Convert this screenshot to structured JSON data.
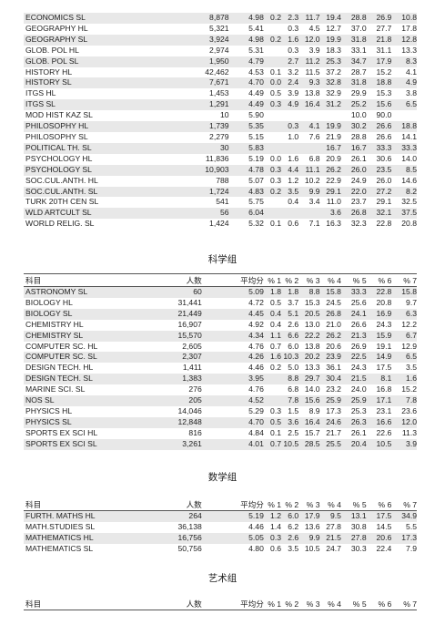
{
  "top_table": {
    "rows": [
      {
        "name": "ECONOMICS SL",
        "count": "8,878",
        "avg": "4.98",
        "p1": "0.2",
        "p2": "2.3",
        "p3": "11.7",
        "p4": "19.4",
        "p5": "28.8",
        "p6": "26.9",
        "p7": "10.8"
      },
      {
        "name": "GEOGRAPHY HL",
        "count": "5,321",
        "avg": "5.41",
        "p1": "",
        "p2": "0.3",
        "p3": "4.5",
        "p4": "12.7",
        "p5": "37.0",
        "p6": "27.7",
        "p7": "17.8"
      },
      {
        "name": "GEOGRAPHY SL",
        "count": "3,924",
        "avg": "4.98",
        "p1": "0.2",
        "p2": "1.6",
        "p3": "12.0",
        "p4": "19.9",
        "p5": "31.8",
        "p6": "21.8",
        "p7": "12.8"
      },
      {
        "name": "GLOB. POL HL",
        "count": "2,974",
        "avg": "5.31",
        "p1": "",
        "p2": "0.3",
        "p3": "3.9",
        "p4": "18.3",
        "p5": "33.1",
        "p6": "31.1",
        "p7": "13.3"
      },
      {
        "name": "GLOB. POL SL",
        "count": "1,950",
        "avg": "4.79",
        "p1": "",
        "p2": "2.7",
        "p3": "11.2",
        "p4": "25.3",
        "p5": "34.7",
        "p6": "17.9",
        "p7": "8.3"
      },
      {
        "name": "HISTORY HL",
        "count": "42,462",
        "avg": "4.53",
        "p1": "0.1",
        "p2": "3.2",
        "p3": "11.5",
        "p4": "37.2",
        "p5": "28.7",
        "p6": "15.2",
        "p7": "4.1"
      },
      {
        "name": "HISTORY SL",
        "count": "7,671",
        "avg": "4.70",
        "p1": "0.0",
        "p2": "2.4",
        "p3": "9.3",
        "p4": "32.8",
        "p5": "31.8",
        "p6": "18.8",
        "p7": "4.9"
      },
      {
        "name": "ITGS HL",
        "count": "1,453",
        "avg": "4.49",
        "p1": "0.5",
        "p2": "3.9",
        "p3": "13.8",
        "p4": "32.9",
        "p5": "29.9",
        "p6": "15.3",
        "p7": "3.8"
      },
      {
        "name": "ITGS SL",
        "count": "1,291",
        "avg": "4.49",
        "p1": "0.3",
        "p2": "4.9",
        "p3": "16.4",
        "p4": "31.2",
        "p5": "25.2",
        "p6": "15.6",
        "p7": "6.5"
      },
      {
        "name": "MOD HIST KAZ SL",
        "count": "10",
        "avg": "5.90",
        "p1": "",
        "p2": "",
        "p3": "",
        "p4": "",
        "p5": "10.0",
        "p6": "90.0",
        "p7": ""
      },
      {
        "name": "PHILOSOPHY HL",
        "count": "1,739",
        "avg": "5.35",
        "p1": "",
        "p2": "0.3",
        "p3": "4.1",
        "p4": "19.9",
        "p5": "30.2",
        "p6": "26.6",
        "p7": "18.8"
      },
      {
        "name": "PHILOSOPHY SL",
        "count": "2,279",
        "avg": "5.15",
        "p1": "",
        "p2": "1.0",
        "p3": "7.6",
        "p4": "21.9",
        "p5": "28.8",
        "p6": "26.6",
        "p7": "14.1"
      },
      {
        "name": "POLITICAL TH. SL",
        "count": "30",
        "avg": "5.83",
        "p1": "",
        "p2": "",
        "p3": "",
        "p4": "16.7",
        "p5": "16.7",
        "p6": "33.3",
        "p7": "33.3"
      },
      {
        "name": "PSYCHOLOGY HL",
        "count": "11,836",
        "avg": "5.19",
        "p1": "0.0",
        "p2": "1.6",
        "p3": "6.8",
        "p4": "20.9",
        "p5": "26.1",
        "p6": "30.6",
        "p7": "14.0"
      },
      {
        "name": "PSYCHOLOGY SL",
        "count": "10,903",
        "avg": "4.78",
        "p1": "0.3",
        "p2": "4.4",
        "p3": "11.1",
        "p4": "26.2",
        "p5": "26.0",
        "p6": "23.5",
        "p7": "8.5"
      },
      {
        "name": "SOC.CUL.ANTH. HL",
        "count": "788",
        "avg": "5.07",
        "p1": "0.3",
        "p2": "1.2",
        "p3": "10.2",
        "p4": "22.9",
        "p5": "24.9",
        "p6": "26.0",
        "p7": "14.6"
      },
      {
        "name": "SOC.CUL.ANTH. SL",
        "count": "1,724",
        "avg": "4.83",
        "p1": "0.2",
        "p2": "3.5",
        "p3": "9.9",
        "p4": "29.1",
        "p5": "22.0",
        "p6": "27.2",
        "p7": "8.2"
      },
      {
        "name": "TURK 20TH CEN SL",
        "count": "541",
        "avg": "5.75",
        "p1": "",
        "p2": "0.4",
        "p3": "3.4",
        "p4": "11.0",
        "p5": "23.7",
        "p6": "29.1",
        "p7": "32.5"
      },
      {
        "name": "WLD ARTCULT SL",
        "count": "56",
        "avg": "6.04",
        "p1": "",
        "p2": "",
        "p3": "",
        "p4": "3.6",
        "p5": "26.8",
        "p6": "32.1",
        "p7": "37.5"
      },
      {
        "name": "WORLD RELIG. SL",
        "count": "1,424",
        "avg": "5.32",
        "p1": "0.1",
        "p2": "0.6",
        "p3": "7.1",
        "p4": "16.3",
        "p5": "32.3",
        "p6": "22.8",
        "p7": "20.8"
      }
    ]
  },
  "science": {
    "title": "科学组",
    "headers": {
      "name": "科目",
      "count": "人数",
      "avg": "平均分",
      "p1": "% 1",
      "p2": "% 2",
      "p3": "% 3",
      "p4": "% 4",
      "p5": "% 5",
      "p6": "% 6",
      "p7": "% 7"
    },
    "rows": [
      {
        "name": "ASTRONOMY SL",
        "count": "60",
        "avg": "5.09",
        "p1": "1.8",
        "p2": "1.8",
        "p3": "8.8",
        "p4": "15.8",
        "p5": "33.3",
        "p6": "22.8",
        "p7": "15.8"
      },
      {
        "name": "BIOLOGY HL",
        "count": "31,441",
        "avg": "4.72",
        "p1": "0.5",
        "p2": "3.7",
        "p3": "15.3",
        "p4": "24.5",
        "p5": "25.6",
        "p6": "20.8",
        "p7": "9.7"
      },
      {
        "name": "BIOLOGY SL",
        "count": "21,449",
        "avg": "4.45",
        "p1": "0.4",
        "p2": "5.1",
        "p3": "20.5",
        "p4": "26.8",
        "p5": "24.1",
        "p6": "16.9",
        "p7": "6.3"
      },
      {
        "name": "CHEMISTRY HL",
        "count": "16,907",
        "avg": "4.92",
        "p1": "0.4",
        "p2": "2.6",
        "p3": "13.0",
        "p4": "21.0",
        "p5": "26.6",
        "p6": "24.3",
        "p7": "12.2"
      },
      {
        "name": "CHEMISTRY SL",
        "count": "15,570",
        "avg": "4.34",
        "p1": "1.1",
        "p2": "6.6",
        "p3": "22.2",
        "p4": "26.2",
        "p5": "21.3",
        "p6": "15.9",
        "p7": "6.7"
      },
      {
        "name": "COMPUTER SC. HL",
        "count": "2,605",
        "avg": "4.76",
        "p1": "0.7",
        "p2": "6.0",
        "p3": "13.8",
        "p4": "20.6",
        "p5": "26.9",
        "p6": "19.1",
        "p7": "12.9"
      },
      {
        "name": "COMPUTER SC. SL",
        "count": "2,307",
        "avg": "4.26",
        "p1": "1.6",
        "p2": "10.3",
        "p3": "20.2",
        "p4": "23.9",
        "p5": "22.5",
        "p6": "14.9",
        "p7": "6.5"
      },
      {
        "name": "DESIGN TECH. HL",
        "count": "1,411",
        "avg": "4.46",
        "p1": "0.2",
        "p2": "5.0",
        "p3": "13.3",
        "p4": "36.1",
        "p5": "24.3",
        "p6": "17.5",
        "p7": "3.5"
      },
      {
        "name": "DESIGN TECH. SL",
        "count": "1,383",
        "avg": "3.95",
        "p1": "",
        "p2": "8.8",
        "p3": "29.7",
        "p4": "30.4",
        "p5": "21.5",
        "p6": "8.1",
        "p7": "1.6"
      },
      {
        "name": "MARINE SCI. SL",
        "count": "276",
        "avg": "4.76",
        "p1": "",
        "p2": "6.8",
        "p3": "14.0",
        "p4": "23.2",
        "p5": "24.0",
        "p6": "16.8",
        "p7": "15.2"
      },
      {
        "name": "NOS SL",
        "count": "205",
        "avg": "4.52",
        "p1": "",
        "p2": "7.8",
        "p3": "15.6",
        "p4": "25.9",
        "p5": "25.9",
        "p6": "17.1",
        "p7": "7.8"
      },
      {
        "name": "PHYSICS HL",
        "count": "14,046",
        "avg": "5.29",
        "p1": "0.3",
        "p2": "1.5",
        "p3": "8.9",
        "p4": "17.3",
        "p5": "25.3",
        "p6": "23.1",
        "p7": "23.6"
      },
      {
        "name": "PHYSICS SL",
        "count": "12,848",
        "avg": "4.70",
        "p1": "0.5",
        "p2": "3.6",
        "p3": "16.4",
        "p4": "24.6",
        "p5": "26.3",
        "p6": "16.6",
        "p7": "12.0"
      },
      {
        "name": "SPORTS EX SCI HL",
        "count": "816",
        "avg": "4.84",
        "p1": "0.1",
        "p2": "2.5",
        "p3": "15.7",
        "p4": "21.7",
        "p5": "26.1",
        "p6": "22.6",
        "p7": "11.3"
      },
      {
        "name": "SPORTS EX SCI SL",
        "count": "3,261",
        "avg": "4.01",
        "p1": "0.7",
        "p2": "10.5",
        "p3": "28.5",
        "p4": "25.5",
        "p5": "20.4",
        "p6": "10.5",
        "p7": "3.9"
      }
    ]
  },
  "math": {
    "title": "数学组",
    "headers": {
      "name": "科目",
      "count": "人数",
      "avg": "平均分",
      "p1": "% 1",
      "p2": "% 2",
      "p3": "% 3",
      "p4": "% 4",
      "p5": "% 5",
      "p6": "% 6",
      "p7": "% 7"
    },
    "rows": [
      {
        "name": "FURTH. MATHS HL",
        "count": "264",
        "avg": "5.19",
        "p1": "1.2",
        "p2": "6.0",
        "p3": "17.9",
        "p4": "9.5",
        "p5": "13.1",
        "p6": "17.5",
        "p7": "34.9"
      },
      {
        "name": "MATH.STUDIES SL",
        "count": "36,138",
        "avg": "4.46",
        "p1": "1.4",
        "p2": "6.2",
        "p3": "13.6",
        "p4": "27.8",
        "p5": "30.8",
        "p6": "14.5",
        "p7": "5.5"
      },
      {
        "name": "MATHEMATICS HL",
        "count": "16,756",
        "avg": "5.05",
        "p1": "0.3",
        "p2": "2.6",
        "p3": "9.9",
        "p4": "21.5",
        "p5": "27.8",
        "p6": "20.6",
        "p7": "17.3"
      },
      {
        "name": "MATHEMATICS SL",
        "count": "50,756",
        "avg": "4.80",
        "p1": "0.6",
        "p2": "3.5",
        "p3": "10.5",
        "p4": "24.7",
        "p5": "30.3",
        "p6": "22.4",
        "p7": "7.9"
      }
    ]
  },
  "arts": {
    "title": "艺术组",
    "headers": {
      "name": "科目",
      "count": "人数",
      "avg": "平均分",
      "p1": "% 1",
      "p2": "% 2",
      "p3": "% 3",
      "p4": "% 4",
      "p5": "% 5",
      "p6": "% 6",
      "p7": "% 7"
    }
  }
}
